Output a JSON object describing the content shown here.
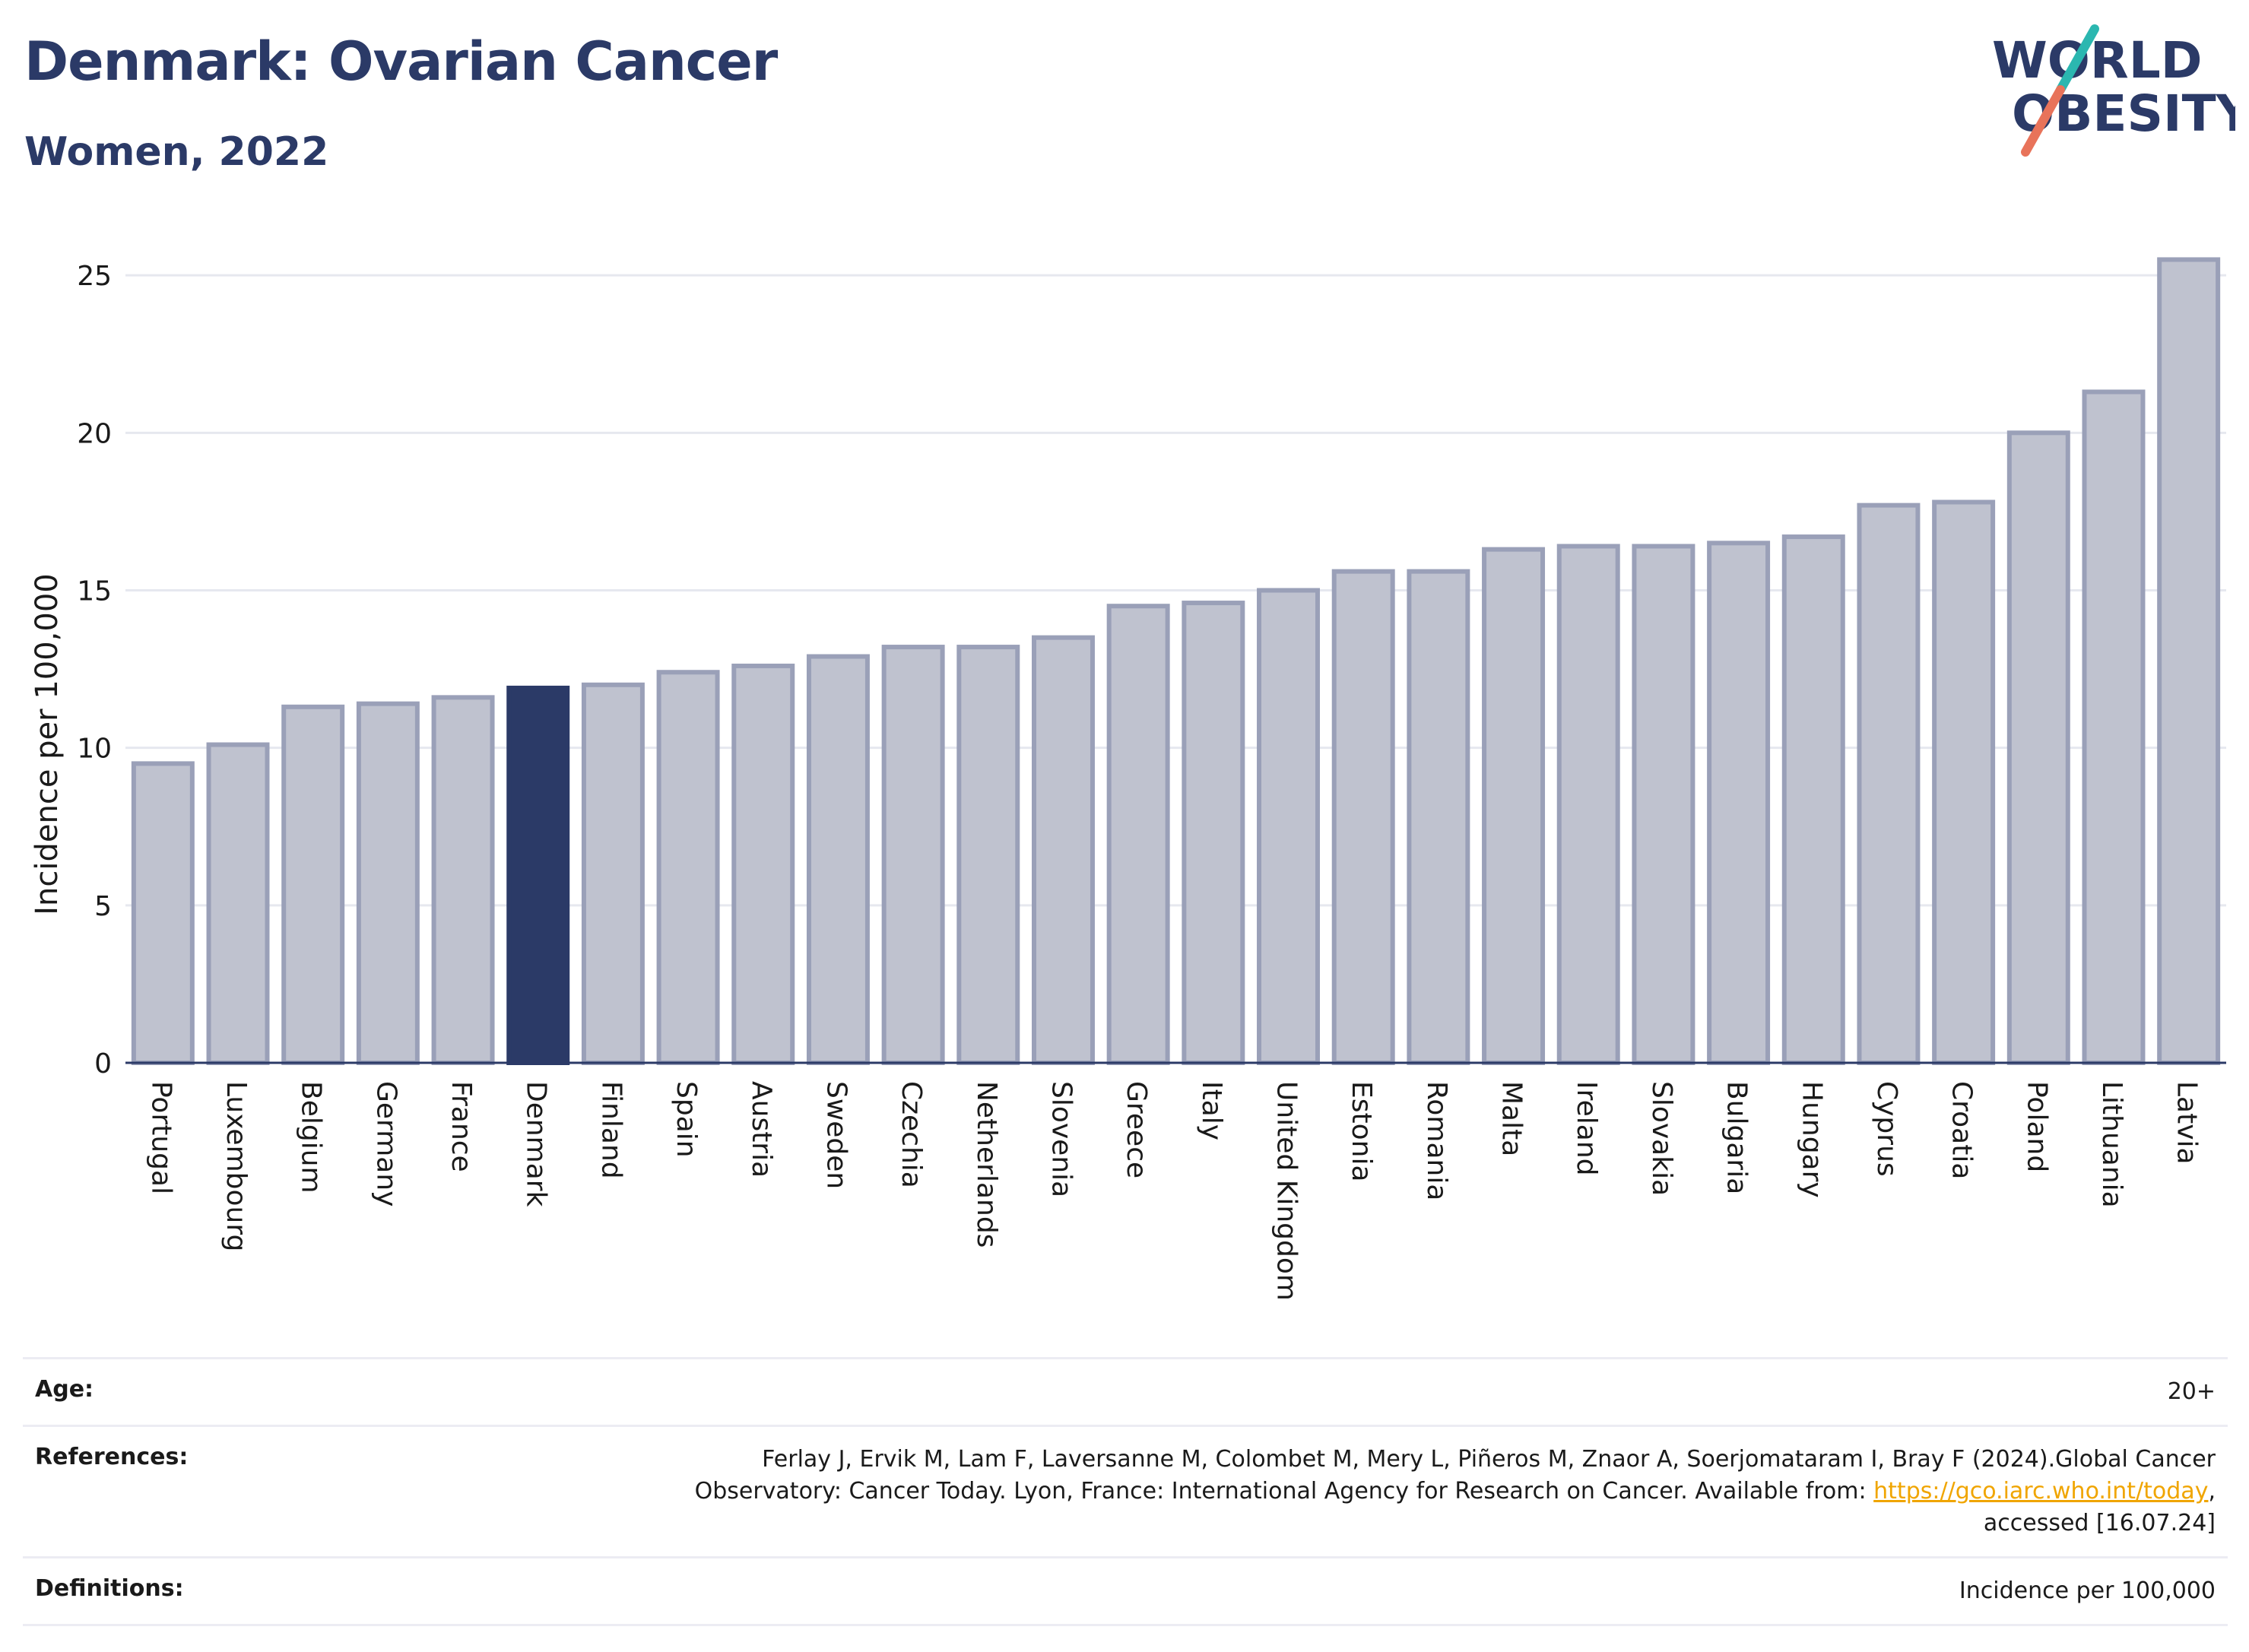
{
  "header": {
    "title": "Denmark: Ovarian Cancer",
    "subtitle": "Women, 2022",
    "logo_line1": "WORLD",
    "logo_line2": "OBESITY"
  },
  "colors": {
    "highlight": "#2b3a67",
    "bar_fill": "#bfc2cf",
    "bar_stroke": "#9aa0b8",
    "title": "#2b3a67",
    "link": "#f0a500"
  },
  "chart_data": {
    "type": "bar",
    "title": "Denmark: Ovarian Cancer",
    "subtitle": "Women, 2022",
    "xlabel": "",
    "ylabel": "Incidence per 100,000",
    "ylim": [
      0,
      26.5
    ],
    "yticks": [
      0,
      5,
      10,
      15,
      20,
      25
    ],
    "grid": true,
    "highlight": "Denmark",
    "categories": [
      "Portugal",
      "Luxembourg",
      "Belgium",
      "Germany",
      "France",
      "Denmark",
      "Finland",
      "Spain",
      "Austria",
      "Sweden",
      "Czechia",
      "Netherlands",
      "Slovenia",
      "Greece",
      "Italy",
      "United Kingdom",
      "Estonia",
      "Romania",
      "Malta",
      "Ireland",
      "Slovakia",
      "Bulgaria",
      "Hungary",
      "Cyprus",
      "Croatia",
      "Poland",
      "Lithuania",
      "Latvia"
    ],
    "values": [
      9.5,
      10.1,
      11.3,
      11.4,
      11.6,
      11.9,
      12.0,
      12.4,
      12.6,
      12.9,
      13.2,
      13.2,
      13.5,
      14.5,
      14.6,
      15.0,
      15.6,
      15.6,
      16.3,
      16.4,
      16.4,
      16.5,
      16.7,
      17.7,
      17.8,
      20.0,
      21.3,
      25.5
    ]
  },
  "info": {
    "age_label": "Age:",
    "age_value": "20+",
    "references_label": "References:",
    "references_line1": "Ferlay J, Ervik M, Lam F, Laversanne M, Colombet M, Mery L, Piñeros M, Znaor A, Soerjomataram I, Bray F (2024).Global Cancer",
    "references_line2_pre": "Observatory: Cancer Today. Lyon, France: International Agency for Research on Cancer. Available from: ",
    "references_link": "https://gco.iarc.who.int/today",
    "references_line2_post": ",",
    "references_line3": "accessed [16.07.24]",
    "definitions_label": "Definitions:",
    "definitions_value": "Incidence per 100,000"
  }
}
